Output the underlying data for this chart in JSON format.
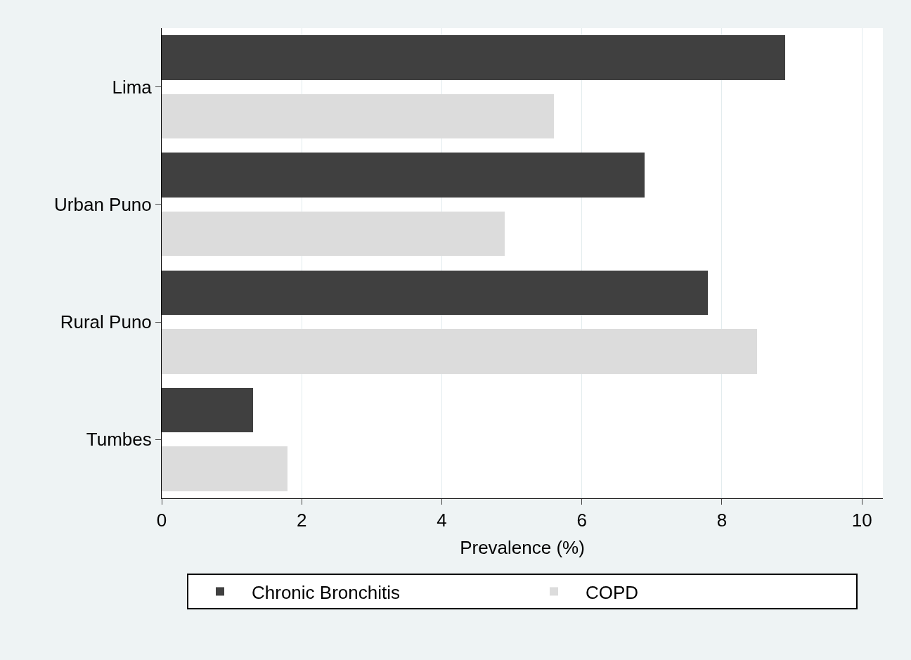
{
  "chart_data": {
    "type": "bar",
    "orientation": "horizontal",
    "xlabel": "Prevalence (%)",
    "categories": [
      "Lima",
      "Urban Puno",
      "Rural Puno",
      "Tumbes"
    ],
    "series": [
      {
        "name": "Chronic Bronchitis",
        "color": "#404040",
        "values": [
          8.9,
          6.9,
          7.8,
          1.3
        ]
      },
      {
        "name": "COPD",
        "color": "#dcdcdc",
        "values": [
          5.6,
          4.9,
          8.5,
          1.8
        ]
      }
    ],
    "xlim": [
      0,
      10.3
    ],
    "xticks": [
      0,
      2,
      4,
      6,
      8,
      10
    ],
    "grid": "x",
    "legend": "bottom"
  }
}
